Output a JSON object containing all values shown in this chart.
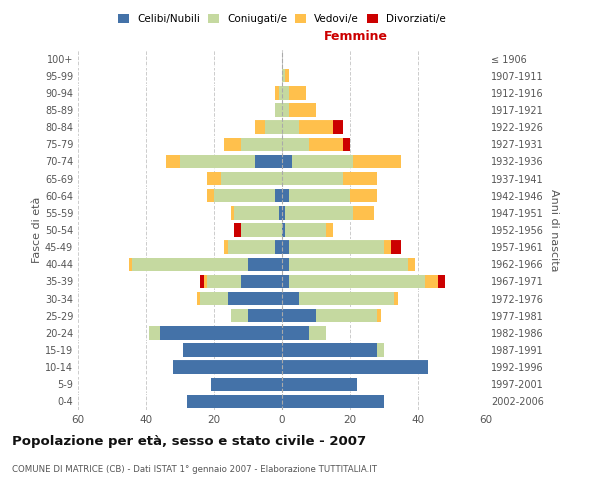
{
  "age_groups": [
    "0-4",
    "5-9",
    "10-14",
    "15-19",
    "20-24",
    "25-29",
    "30-34",
    "35-39",
    "40-44",
    "45-49",
    "50-54",
    "55-59",
    "60-64",
    "65-69",
    "70-74",
    "75-79",
    "80-84",
    "85-89",
    "90-94",
    "95-99",
    "100+"
  ],
  "birth_years": [
    "2002-2006",
    "1997-2001",
    "1992-1996",
    "1987-1991",
    "1982-1986",
    "1977-1981",
    "1972-1976",
    "1967-1971",
    "1962-1966",
    "1957-1961",
    "1952-1956",
    "1947-1951",
    "1942-1946",
    "1937-1941",
    "1932-1936",
    "1927-1931",
    "1922-1926",
    "1917-1921",
    "1912-1916",
    "1907-1911",
    "≤ 1906"
  ],
  "males": {
    "celibi": [
      28,
      21,
      32,
      29,
      36,
      10,
      16,
      12,
      10,
      2,
      0,
      1,
      2,
      0,
      8,
      0,
      0,
      0,
      0,
      0,
      0
    ],
    "coniugati": [
      0,
      0,
      0,
      0,
      3,
      5,
      8,
      10,
      34,
      14,
      12,
      13,
      18,
      18,
      22,
      12,
      5,
      2,
      1,
      0,
      0
    ],
    "vedovi": [
      0,
      0,
      0,
      0,
      0,
      0,
      1,
      1,
      1,
      1,
      0,
      1,
      2,
      4,
      4,
      5,
      3,
      0,
      1,
      0,
      0
    ],
    "divorziati": [
      0,
      0,
      0,
      0,
      0,
      0,
      0,
      1,
      0,
      0,
      2,
      0,
      0,
      0,
      0,
      0,
      0,
      0,
      0,
      0,
      0
    ]
  },
  "females": {
    "nubili": [
      30,
      22,
      43,
      28,
      8,
      10,
      5,
      2,
      2,
      2,
      1,
      1,
      2,
      0,
      3,
      0,
      0,
      0,
      0,
      0,
      0
    ],
    "coniugate": [
      0,
      0,
      0,
      2,
      5,
      18,
      28,
      40,
      35,
      28,
      12,
      20,
      18,
      18,
      18,
      8,
      5,
      2,
      2,
      1,
      0
    ],
    "vedove": [
      0,
      0,
      0,
      0,
      0,
      1,
      1,
      4,
      2,
      2,
      2,
      6,
      8,
      10,
      14,
      10,
      10,
      8,
      5,
      1,
      0
    ],
    "divorziate": [
      0,
      0,
      0,
      0,
      0,
      0,
      0,
      2,
      0,
      3,
      0,
      0,
      0,
      0,
      0,
      2,
      3,
      0,
      0,
      0,
      0
    ]
  },
  "colors": {
    "celibi_nubili": "#4472a8",
    "coniugati": "#c5d9a0",
    "vedovi": "#ffc04c",
    "divorziati": "#cc0000"
  },
  "title": "Popolazione per età, sesso e stato civile - 2007",
  "subtitle": "COMUNE DI MATRICE (CB) - Dati ISTAT 1° gennaio 2007 - Elaborazione TUTTITALIA.IT",
  "xlabel_right": "Femmine",
  "ylabel_left": "Fasce di età",
  "ylabel_right": "Anni di nascita",
  "xlim": 60,
  "background_color": "#ffffff",
  "grid_color": "#cccccc"
}
